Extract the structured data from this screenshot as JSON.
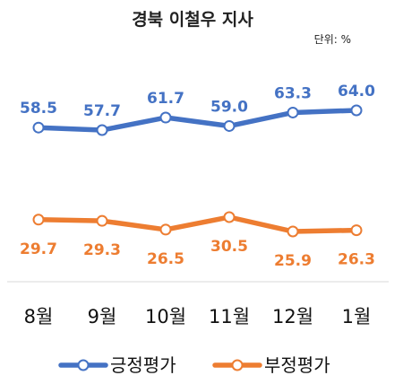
{
  "chart_data": {
    "type": "line",
    "title": "경북 이철우 지사",
    "unit": "단위: %",
    "categories": [
      "8월",
      "9월",
      "10월",
      "11월",
      "12월",
      "1월"
    ],
    "series": [
      {
        "name": "긍정평가",
        "values": [
          58.5,
          57.7,
          61.7,
          59.0,
          63.3,
          64.0
        ],
        "color": "#4472c4",
        "labels": [
          "58.5",
          "57.7",
          "61.7",
          "59.0",
          "63.3",
          "64.0"
        ]
      },
      {
        "name": "부정평가",
        "values": [
          29.7,
          29.3,
          26.5,
          30.5,
          25.9,
          26.3
        ],
        "color": "#ed7d31",
        "labels": [
          "29.7",
          "29.3",
          "26.5",
          "30.5",
          "25.9",
          "26.3"
        ]
      }
    ],
    "legend_position": "bottom",
    "grid": false
  }
}
